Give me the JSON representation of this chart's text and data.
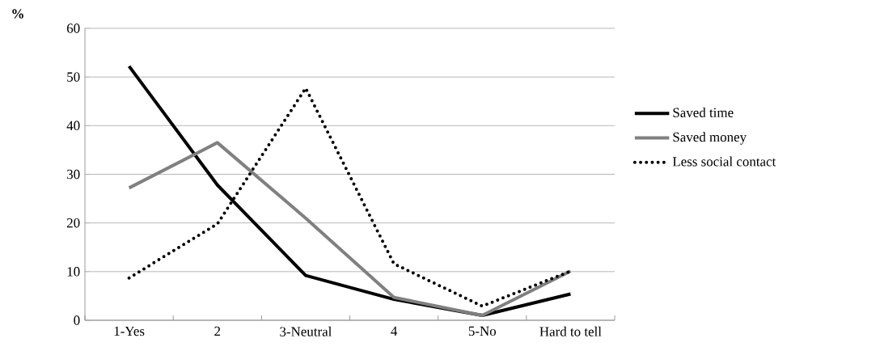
{
  "chart_data": {
    "type": "line",
    "ylabel": "%",
    "categories": [
      "1-Yes",
      "2",
      "3-Neutral",
      "4",
      "5-No",
      "Hard to tell"
    ],
    "series": [
      {
        "name": "Saved time",
        "color": "#000000",
        "line_style": "solid",
        "values": [
          52.2,
          27.8,
          9.2,
          4.3,
          1.0,
          5.4
        ]
      },
      {
        "name": "Saved money",
        "color": "#808080",
        "line_style": "solid",
        "values": [
          27.2,
          36.5,
          21.0,
          4.7,
          1.0,
          10.1
        ]
      },
      {
        "name": "Less social contact",
        "color": "#000000",
        "line_style": "dotted",
        "values": [
          8.7,
          19.8,
          47.7,
          11.6,
          2.9,
          10.1
        ]
      }
    ],
    "ylim": [
      0,
      60
    ],
    "yticks": [
      0,
      10,
      20,
      30,
      40,
      50,
      60
    ],
    "grid": "y",
    "legend": "right"
  }
}
